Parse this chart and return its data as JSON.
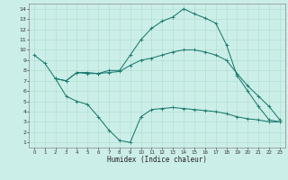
{
  "title": "",
  "xlabel": "Humidex (Indice chaleur)",
  "background_color": "#cceee8",
  "grid_color": "#aaddcc",
  "line_color": "#1a7a6e",
  "xlim": [
    -0.5,
    23.5
  ],
  "ylim": [
    0.5,
    14.5
  ],
  "xticks": [
    0,
    1,
    2,
    3,
    4,
    5,
    6,
    7,
    8,
    9,
    10,
    11,
    12,
    13,
    14,
    15,
    16,
    17,
    18,
    19,
    20,
    21,
    22,
    23
  ],
  "yticks": [
    1,
    2,
    3,
    4,
    5,
    6,
    7,
    8,
    9,
    10,
    11,
    12,
    13,
    14
  ],
  "line1_x": [
    0,
    1,
    2,
    3,
    4,
    5,
    6,
    7,
    8,
    9,
    10,
    11,
    12,
    13,
    14,
    15,
    16,
    17,
    18,
    19,
    20,
    21,
    22,
    23
  ],
  "line1_y": [
    9.5,
    8.7,
    7.2,
    7.0,
    7.8,
    7.7,
    7.7,
    8.0,
    8.0,
    9.5,
    11.0,
    12.1,
    12.8,
    13.2,
    14.0,
    13.5,
    13.1,
    12.6,
    10.5,
    7.5,
    6.0,
    4.5,
    3.2,
    3.0
  ],
  "line2_x": [
    2,
    3,
    4,
    5,
    6,
    7,
    8,
    9,
    10,
    11,
    12,
    13,
    14,
    15,
    16,
    17,
    18,
    19,
    20,
    21,
    22,
    23
  ],
  "line2_y": [
    7.2,
    5.5,
    5.0,
    4.7,
    3.5,
    2.2,
    1.2,
    1.0,
    3.5,
    4.2,
    4.3,
    4.4,
    4.3,
    4.2,
    4.1,
    4.0,
    3.8,
    3.5,
    3.3,
    3.2,
    3.0,
    3.0
  ],
  "line3_x": [
    2,
    3,
    4,
    5,
    6,
    7,
    8,
    9,
    10,
    11,
    12,
    13,
    14,
    15,
    16,
    17,
    18,
    19,
    20,
    21,
    22,
    23
  ],
  "line3_y": [
    7.2,
    7.0,
    7.8,
    7.8,
    7.7,
    7.8,
    7.9,
    8.5,
    9.0,
    9.2,
    9.5,
    9.8,
    10.0,
    10.0,
    9.8,
    9.5,
    9.0,
    7.7,
    6.5,
    5.5,
    4.5,
    3.2
  ]
}
